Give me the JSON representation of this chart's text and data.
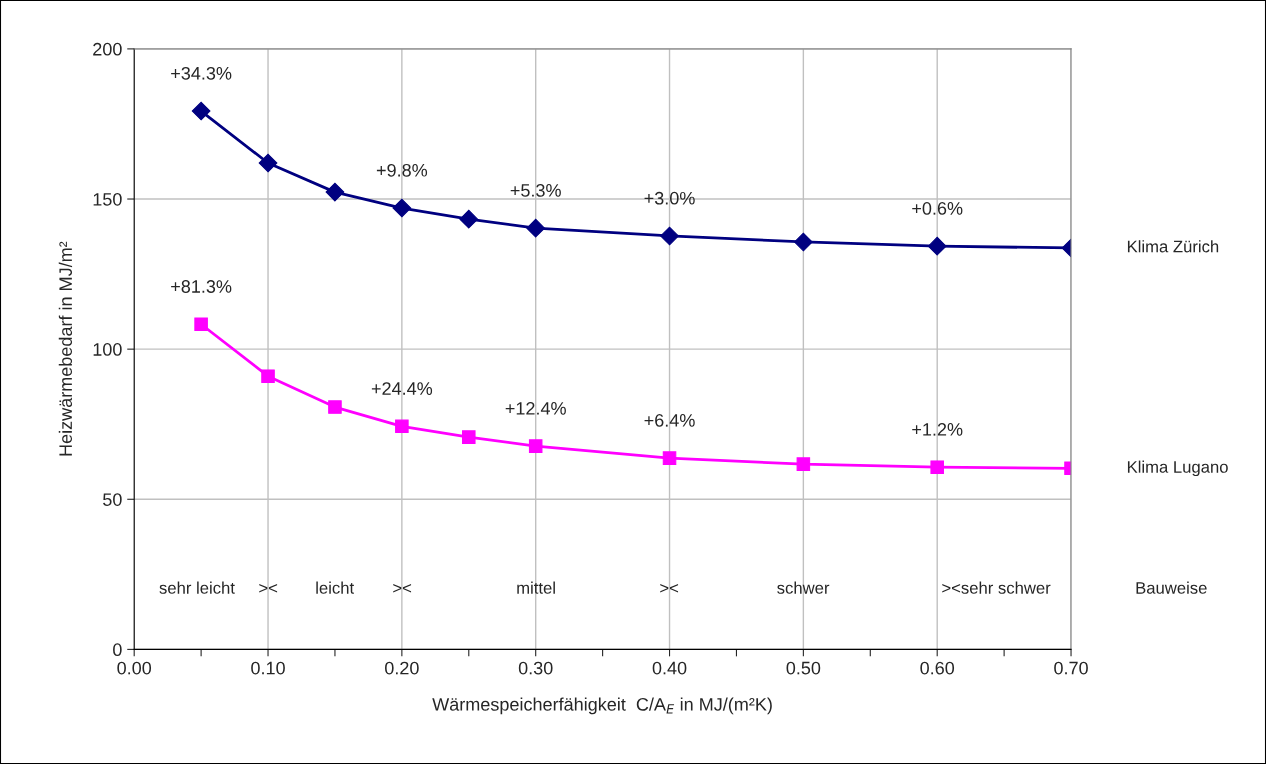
{
  "chart_data": {
    "type": "line",
    "xlabel": "Wärmespeicherfähigkeit  C/A$_{E}$ in MJ/(m²K)",
    "ylabel": "Heizwärmebedarf in MJ/m²",
    "x": [
      0.05,
      0.1,
      0.15,
      0.2,
      0.25,
      0.3,
      0.4,
      0.5,
      0.6,
      0.7
    ],
    "series": [
      {
        "name": "Klima Zürich",
        "color": "#000080",
        "marker": "diamond",
        "values": [
          179.3,
          162,
          152.3,
          147,
          143.3,
          140.3,
          137.7,
          135.7,
          134.3,
          133.7
        ]
      },
      {
        "name": "Klima Lugano",
        "color": "#ff00ff",
        "marker": "square",
        "values": [
          108.3,
          91,
          80.7,
          74.3,
          70.7,
          67.7,
          63.7,
          61.7,
          60.7,
          60.3
        ]
      }
    ],
    "xlim": [
      0,
      0.7
    ],
    "ylim": [
      0,
      200
    ],
    "xticks": [
      {
        "value": 0,
        "label": "0.00"
      },
      {
        "value": 0.05,
        "label": null
      },
      {
        "value": 0.1,
        "label": "0.10"
      },
      {
        "value": 0.15,
        "label": null
      },
      {
        "value": 0.2,
        "label": "0.20"
      },
      {
        "value": 0.25,
        "label": null
      },
      {
        "value": 0.3,
        "label": "0.30"
      },
      {
        "value": 0.35,
        "label": null
      },
      {
        "value": 0.4,
        "label": "0.40"
      },
      {
        "value": 0.45,
        "label": null
      },
      {
        "value": 0.5,
        "label": "0.50"
      },
      {
        "value": 0.55,
        "label": null
      },
      {
        "value": 0.6,
        "label": "0.60"
      },
      {
        "value": 0.65,
        "label": null
      },
      {
        "value": 0.7,
        "label": "0.70"
      }
    ],
    "yticks": [
      0,
      50,
      100,
      150,
      200
    ],
    "grid": true,
    "line_style": "solid",
    "annotations": [
      {
        "text": "+34.3%",
        "x": 0.05,
        "y": 179.3
      },
      {
        "text": "+9.8%",
        "x": 0.2,
        "y": 147
      },
      {
        "text": "+5.3%",
        "x": 0.3,
        "y": 140.3
      },
      {
        "text": "+3.0%",
        "x": 0.4,
        "y": 137.7
      },
      {
        "text": "+0.6%",
        "x": 0.6,
        "y": 134.3
      },
      {
        "text": "+81.3%",
        "x": 0.05,
        "y": 108.3
      },
      {
        "text": "+24.4%",
        "x": 0.2,
        "y": 74.3
      },
      {
        "text": "+12.4%",
        "x": 0.3,
        "y": 67.7
      },
      {
        "text": "+6.4%",
        "x": 0.4,
        "y": 63.7
      },
      {
        "text": "+1.2%",
        "x": 0.6,
        "y": 60.7
      },
      "sehr leicht",
      "><",
      "leicht",
      "><",
      "mittel",
      "><",
      "schwer",
      "><sehr schwer",
      "Bauweise"
    ]
  }
}
